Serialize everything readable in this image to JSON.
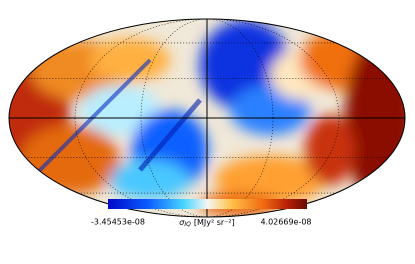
{
  "map": {
    "projection": "mollweide",
    "colorbar": {
      "min": "-3.45453e-08",
      "max": "4.02669e-08",
      "symbol": "σ",
      "subscript": "IQ",
      "unit": "[MJy² sr⁻²]"
    }
  }
}
